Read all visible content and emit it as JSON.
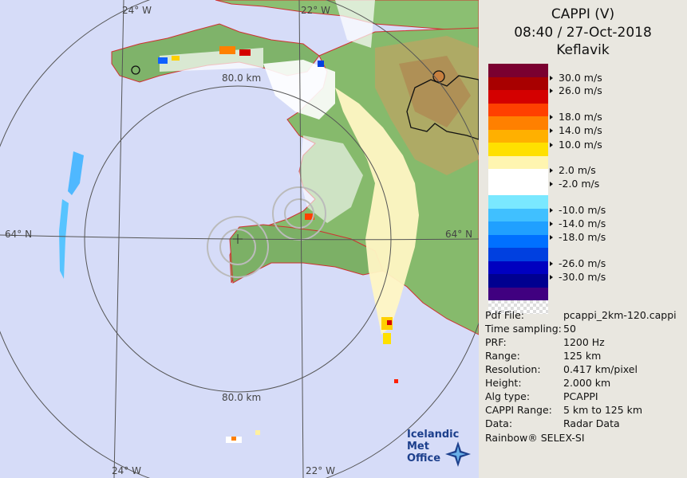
{
  "header": {
    "product": "CAPPI (V)",
    "datetime": "08:40 / 27-Oct-2018",
    "site": "Keflavik"
  },
  "map": {
    "lon_labels": [
      "24° W",
      "22° W",
      "24° W",
      "22° W"
    ],
    "lat_labels": [
      "64° N",
      "64° N"
    ],
    "range_labels": [
      "80.0 km",
      "80.0 km"
    ],
    "logo_lines": [
      "Icelandic Met",
      "Office"
    ]
  },
  "legend": {
    "labels": [
      "30.0 m/s",
      "26.0 m/s",
      "18.0 m/s",
      "14.0 m/s",
      "10.0 m/s",
      "2.0 m/s",
      "-2.0 m/s",
      "-10.0 m/s",
      "-14.0 m/s",
      "-18.0 m/s",
      "-26.0 m/s",
      "-30.0 m/s"
    ],
    "colors": [
      "#7a0030",
      "#a80000",
      "#d40000",
      "#ff4000",
      "#ff8000",
      "#ffb000",
      "#ffe000",
      "#fff5b0",
      "#ffffff",
      "#ffffff",
      "#7ae8ff",
      "#40c0ff",
      "#20a0ff",
      "#0070ff",
      "#0040e0",
      "#0000c0",
      "#000090",
      "#400080"
    ]
  },
  "info": {
    "rows": [
      {
        "k": "Pdf File:",
        "v": "pcappi_2km-120.cappi"
      },
      {
        "k": "Time sampling:",
        "v": "50"
      },
      {
        "k": "PRF:",
        "v": "1200 Hz"
      },
      {
        "k": "Range:",
        "v": "125 km"
      },
      {
        "k": "Resolution:",
        "v": "0.417 km/pixel"
      },
      {
        "k": "Height:",
        "v": "2.000 km"
      },
      {
        "k": "Alg type:",
        "v": "PCAPPI"
      },
      {
        "k": "CAPPI Range:",
        "v": "5 km to 125 km"
      },
      {
        "k": "Data:",
        "v": "Radar Data"
      }
    ],
    "footer": "Rainbow® SELEX-SI"
  }
}
